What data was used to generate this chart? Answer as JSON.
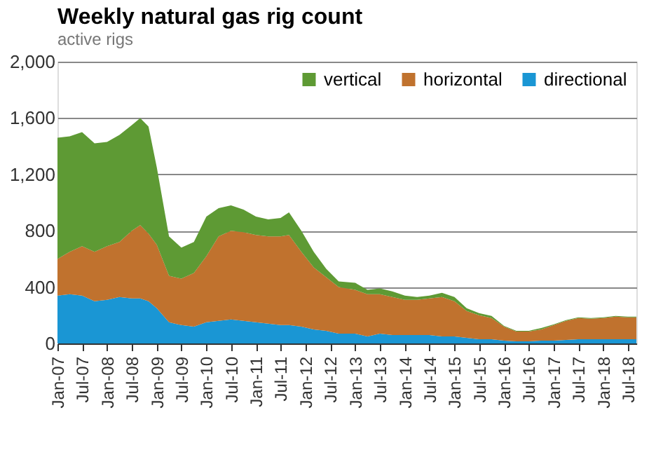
{
  "chart_data": {
    "type": "area",
    "title": "Weekly natural gas rig count",
    "subtitle": "active rigs",
    "x": [
      "2007-01",
      "2007-04",
      "2007-07",
      "2007-10",
      "2008-01",
      "2008-04",
      "2008-07",
      "2008-09",
      "2008-11",
      "2009-01",
      "2009-04",
      "2009-07",
      "2009-10",
      "2010-01",
      "2010-04",
      "2010-07",
      "2010-10",
      "2011-01",
      "2011-04",
      "2011-07",
      "2011-09",
      "2011-12",
      "2012-03",
      "2012-06",
      "2012-09",
      "2013-01",
      "2013-04",
      "2013-07",
      "2013-10",
      "2014-01",
      "2014-04",
      "2014-07",
      "2014-10",
      "2015-01",
      "2015-04",
      "2015-07",
      "2015-10",
      "2016-01",
      "2016-04",
      "2016-07",
      "2016-10",
      "2017-01",
      "2017-04",
      "2017-07",
      "2017-10",
      "2018-01",
      "2018-04",
      "2018-07",
      "2018-09"
    ],
    "stacked": true,
    "series": [
      {
        "name": "directional",
        "color": "#1a96d4",
        "values": [
          340,
          350,
          340,
          300,
          310,
          330,
          320,
          320,
          300,
          250,
          150,
          130,
          120,
          150,
          160,
          170,
          160,
          150,
          140,
          130,
          130,
          120,
          100,
          90,
          70,
          70,
          50,
          70,
          60,
          60,
          60,
          60,
          50,
          50,
          40,
          30,
          30,
          20,
          15,
          15,
          20,
          20,
          25,
          30,
          30,
          30,
          30,
          30,
          30
        ]
      },
      {
        "name": "horizontal",
        "color": "#c0722e",
        "values": [
          260,
          300,
          350,
          350,
          380,
          390,
          480,
          520,
          480,
          450,
          330,
          330,
          380,
          470,
          600,
          630,
          630,
          620,
          620,
          630,
          640,
          530,
          440,
          380,
          330,
          310,
          300,
          280,
          270,
          250,
          250,
          260,
          280,
          250,
          190,
          170,
          150,
          100,
          70,
          70,
          80,
          110,
          135,
          150,
          145,
          150,
          160,
          155,
          155
        ]
      },
      {
        "name": "vertical",
        "color": "#5e9a34",
        "values": [
          860,
          820,
          810,
          770,
          740,
          760,
          750,
          760,
          760,
          550,
          280,
          220,
          220,
          280,
          200,
          180,
          160,
          130,
          120,
          130,
          160,
          150,
          110,
          60,
          40,
          50,
          30,
          40,
          40,
          30,
          20,
          20,
          30,
          30,
          20,
          15,
          15,
          5,
          5,
          5,
          10,
          5,
          5,
          5,
          5,
          5,
          5,
          5,
          5
        ]
      }
    ],
    "ylim": [
      0,
      2000
    ],
    "yticks": [
      0,
      {
        "value": 400,
        "label": "400"
      },
      {
        "value": 800,
        "label": "800"
      },
      {
        "value": 1200,
        "label": "1,200"
      },
      {
        "value": 1600,
        "label": "1,600"
      },
      {
        "value": 2000,
        "label": "2,000"
      }
    ],
    "xlim": [
      "2007-01",
      "2018-09"
    ],
    "xticks": [
      {
        "value": "2007-01",
        "label": "Jan-07"
      },
      {
        "value": "2007-07",
        "label": "Jul-07"
      },
      {
        "value": "2008-01",
        "label": "Jan-08"
      },
      {
        "value": "2008-07",
        "label": "Jul-08"
      },
      {
        "value": "2009-01",
        "label": "Jan-09"
      },
      {
        "value": "2009-07",
        "label": "Jul-09"
      },
      {
        "value": "2010-01",
        "label": "Jan-10"
      },
      {
        "value": "2010-07",
        "label": "Jul-10"
      },
      {
        "value": "2011-01",
        "label": "Jan-11"
      },
      {
        "value": "2011-07",
        "label": "Jul-11"
      },
      {
        "value": "2012-01",
        "label": "Jan-12"
      },
      {
        "value": "2012-07",
        "label": "Jul-12"
      },
      {
        "value": "2013-01",
        "label": "Jan-13"
      },
      {
        "value": "2013-07",
        "label": "Jul-13"
      },
      {
        "value": "2014-01",
        "label": "Jan-14"
      },
      {
        "value": "2014-07",
        "label": "Jul-14"
      },
      {
        "value": "2015-01",
        "label": "Jan-15"
      },
      {
        "value": "2015-07",
        "label": "Jul-15"
      },
      {
        "value": "2016-01",
        "label": "Jan-16"
      },
      {
        "value": "2016-07",
        "label": "Jul-16"
      },
      {
        "value": "2017-01",
        "label": "Jan-17"
      },
      {
        "value": "2017-07",
        "label": "Jul-17"
      },
      {
        "value": "2018-01",
        "label": "Jan-18"
      },
      {
        "value": "2018-07",
        "label": "Jul-18"
      }
    ],
    "grid": "y",
    "legend": "top right"
  }
}
